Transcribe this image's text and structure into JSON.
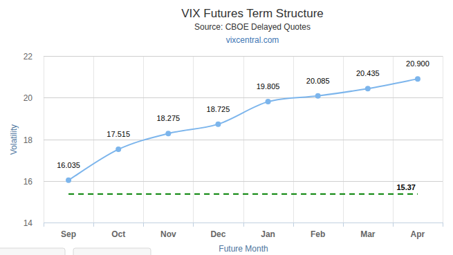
{
  "chart_data": {
    "type": "line",
    "title": "VIX Futures Term Structure",
    "subtitle": "Source: CBOE Delayed Quotes",
    "caption": "vixcentral.com",
    "x_label": "Future Month",
    "y_label": "Volatility",
    "categories": [
      "Sep",
      "Oct",
      "Nov",
      "Dec",
      "Jan",
      "Feb",
      "Mar",
      "Apr"
    ],
    "values": [
      16.035,
      17.515,
      18.275,
      18.725,
      19.805,
      20.085,
      20.435,
      20.9
    ],
    "value_labels": [
      "16.035",
      "17.515",
      "18.275",
      "18.725",
      "19.805",
      "20.085",
      "20.435",
      "20.900"
    ],
    "color": "#7cb5ec",
    "marker": "circle",
    "data_labels": true,
    "ylim": [
      14,
      22
    ],
    "yticks": [
      14,
      16,
      18,
      20,
      22
    ],
    "grid": true,
    "reference_lines": [
      {
        "value": 15.37,
        "color": "#008000",
        "line_style": "dashed"
      }
    ]
  }
}
